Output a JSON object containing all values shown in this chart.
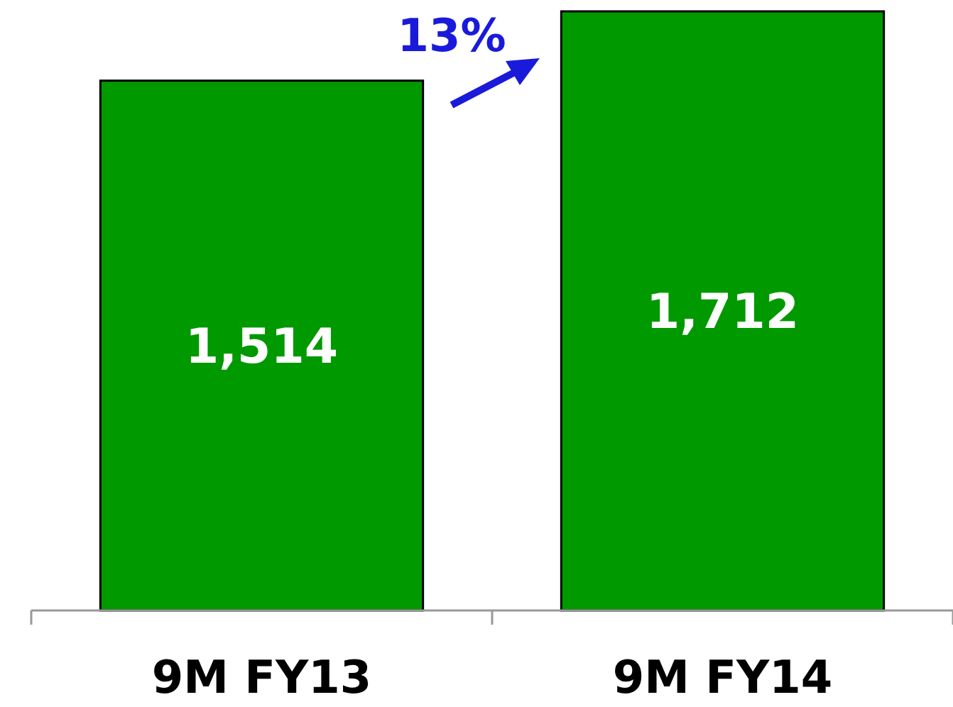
{
  "chart_data": {
    "type": "bar",
    "categories": [
      "9M FY13",
      "9M FY14"
    ],
    "values": [
      1514,
      1712
    ],
    "color": "#009900",
    "value_labels": [
      "1,514",
      "1,712"
    ],
    "annotations": [
      "13%"
    ]
  }
}
